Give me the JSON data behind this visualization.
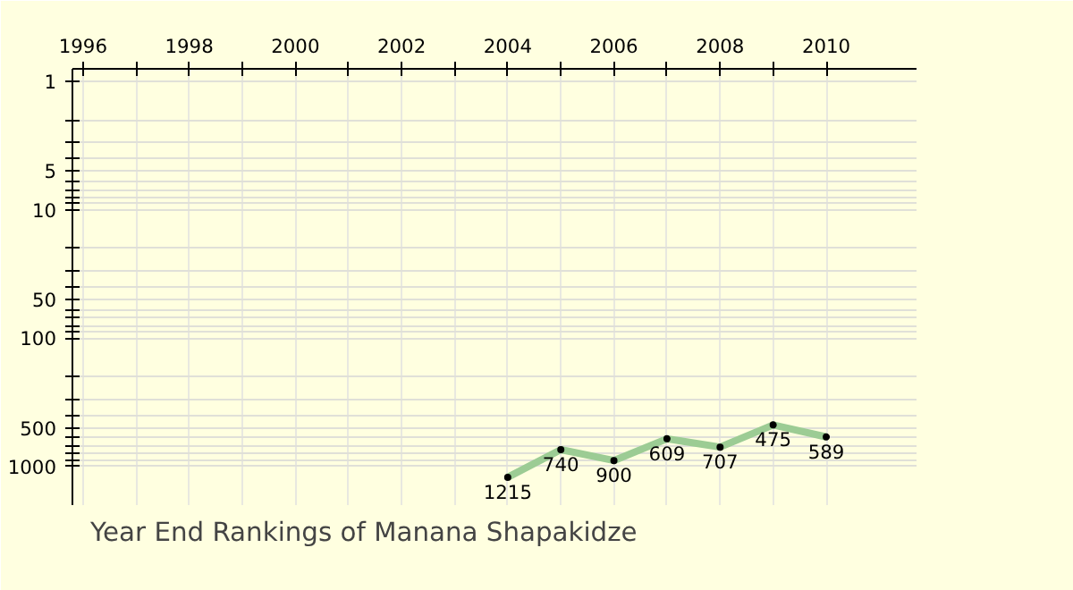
{
  "chart_data": {
    "type": "line",
    "title": "Year End Rankings of Manana Shapakidze",
    "x": [
      2004,
      2005,
      2006,
      2007,
      2008,
      2009,
      2010
    ],
    "series": [
      {
        "color": "#9ccc94",
        "values": [
          1215,
          740,
          900,
          609,
          707,
          475,
          589
        ]
      }
    ],
    "data_labels": true,
    "marker": "circle",
    "line_style": "solid",
    "log": "y",
    "grid": true,
    "xlim": [
      1995.8,
      2011.7
    ],
    "xticks": [
      1996,
      {
        "value": 1997,
        "label": null
      },
      1998,
      {
        "value": 1999,
        "label": null
      },
      2000,
      {
        "value": 2001,
        "label": null
      },
      2002,
      {
        "value": 2003,
        "label": null
      },
      2004,
      {
        "value": 2005,
        "label": null
      },
      2006,
      {
        "value": 2007,
        "label": null
      },
      2008,
      {
        "value": 2009,
        "label": null
      },
      2010
    ],
    "ylim": [
      2000,
      0.8
    ],
    "yticks": [
      1,
      {
        "value": 2,
        "label": null
      },
      {
        "value": 3,
        "label": null
      },
      {
        "value": 4,
        "label": null
      },
      5,
      {
        "value": 6,
        "label": null
      },
      {
        "value": 7,
        "label": null
      },
      {
        "value": 8,
        "label": null
      },
      {
        "value": 9,
        "label": null
      },
      10,
      {
        "value": 20,
        "label": null
      },
      {
        "value": 30,
        "label": null
      },
      {
        "value": 40,
        "label": null
      },
      50,
      {
        "value": 60,
        "label": null
      },
      {
        "value": 70,
        "label": null
      },
      {
        "value": 80,
        "label": null
      },
      {
        "value": 90,
        "label": null
      },
      100,
      {
        "value": 200,
        "label": null
      },
      {
        "value": 300,
        "label": null
      },
      {
        "value": 400,
        "label": null
      },
      500,
      {
        "value": 600,
        "label": null
      },
      {
        "value": 700,
        "label": null
      },
      {
        "value": 800,
        "label": null
      },
      {
        "value": 900,
        "label": null
      },
      1000
    ]
  }
}
